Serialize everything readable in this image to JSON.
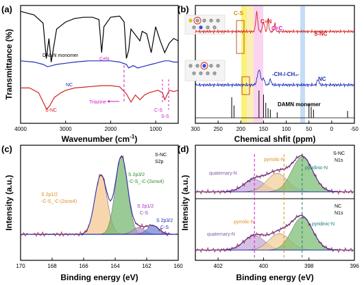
{
  "chart_data": [
    {
      "panel": "(a)",
      "type": "line",
      "xlabel": "Wavenumber (cm⁻¹)",
      "ylabel": "Transmittance (%)",
      "xlim": [
        4000,
        500
      ],
      "x_ticks": [
        "4000",
        "3000",
        "2000",
        "1000"
      ],
      "x_tick_values": [
        4000,
        3000,
        2000,
        1000
      ],
      "series": [
        {
          "name": "DAMN monomer",
          "color": "#000000",
          "x": [
            4000,
            3700,
            3500,
            3430,
            3370,
            3320,
            3200,
            3000,
            2800,
            2600,
            2400,
            2260,
            2200,
            2150,
            2000,
            1800,
            1700,
            1650,
            1600,
            1550,
            1450,
            1350,
            1300,
            1200,
            1100,
            1000,
            900,
            800,
            700,
            600,
            500
          ],
          "y": [
            95,
            92,
            85,
            55,
            72,
            52,
            80,
            86,
            89,
            90,
            90,
            88,
            60,
            82,
            90,
            91,
            86,
            55,
            62,
            80,
            75,
            70,
            78,
            76,
            60,
            82,
            70,
            60,
            68,
            72,
            70
          ]
        },
        {
          "name": "NC",
          "color": "#1f2fb5",
          "x": [
            4000,
            3700,
            3500,
            3400,
            3300,
            3200,
            3000,
            2800,
            2500,
            2200,
            2000,
            1800,
            1650,
            1600,
            1500,
            1400,
            1300,
            1200,
            1100,
            1000,
            900,
            800,
            700,
            600,
            500
          ],
          "y": [
            53,
            52,
            50,
            48,
            49,
            50,
            51,
            52,
            53,
            53,
            53,
            52,
            50,
            47,
            49,
            47,
            48,
            49,
            50,
            51,
            52,
            53,
            53,
            52,
            52
          ]
        },
        {
          "name": "S-NC",
          "color": "#d62020",
          "x": [
            4000,
            3800,
            3600,
            3500,
            3420,
            3350,
            3250,
            3100,
            3000,
            2800,
            2500,
            2200,
            2000,
            1800,
            1650,
            1550,
            1450,
            1350,
            1250,
            1150,
            1050,
            950,
            850,
            800,
            700,
            600,
            500
          ],
          "y": [
            30,
            30,
            26,
            18,
            12,
            15,
            22,
            26,
            28,
            30,
            31,
            32,
            32,
            31,
            25,
            18,
            24,
            20,
            24,
            26,
            27,
            28,
            26,
            20,
            28,
            27,
            28
          ]
        }
      ],
      "annotations": [
        "DAMN monomer",
        "C≡N",
        "NC",
        "Triazine",
        "S-NC",
        "C-S",
        "S-S"
      ]
    },
    {
      "panel": "(b)",
      "type": "line",
      "xlabel": "Chemical shfit (ppm)",
      "xlim": [
        300,
        -50
      ],
      "x_ticks": [
        "300",
        "250",
        "200",
        "150",
        "100",
        "50",
        "0",
        "-50"
      ],
      "x_tick_values": [
        300,
        250,
        200,
        150,
        100,
        50,
        0,
        -50
      ],
      "series": [
        {
          "name": "S-NC",
          "color": "#d62020"
        },
        {
          "name": "NC",
          "color": "#1f2fb5"
        },
        {
          "name": "DAMN monomer",
          "color": "#000000"
        }
      ],
      "annotations": [
        "C-S",
        "C≡N",
        "C=C",
        "S-NC",
        "-CH-/-CH₂-",
        "NC",
        "DAMN monomer"
      ]
    },
    {
      "panel": "(c)",
      "type": "line",
      "xlabel": "Binding energy (eV)",
      "ylabel": "Intensity (a.u.)",
      "xlim": [
        170,
        160
      ],
      "x_ticks": [
        "170",
        "168",
        "166",
        "164",
        "162",
        "160"
      ],
      "x_tick_values": [
        170,
        168,
        166,
        164,
        162,
        160
      ],
      "corner_label": [
        "S-NC",
        "S2p"
      ],
      "peaks": [
        {
          "label": "S 2p1/2 -C-S_-C-(2≤n≤4)",
          "center": 164.9,
          "height": 0.7,
          "color": "#f5c58a"
        },
        {
          "label": "S 2p3/2 -C-S_-C-(2≤n≤4)",
          "center": 163.6,
          "height": 0.92,
          "color": "#6fb36a"
        },
        {
          "label": "S 2p1/2 C-S",
          "center": 162.5,
          "height": 0.08,
          "color": "#b78fd1"
        },
        {
          "label": "S 2p3/2 C-S",
          "center": 161.6,
          "height": 0.1,
          "color": "#6a7fd6"
        }
      ]
    },
    {
      "panel": "(d)",
      "type": "line",
      "xlabel": "Binding energy (eV)",
      "ylabel": "Intensity (a.u.)",
      "xlim": [
        403,
        396
      ],
      "x_ticks": [
        "402",
        "400",
        "398",
        "396"
      ],
      "x_tick_values": [
        402,
        400,
        398,
        396
      ],
      "subpanels": [
        {
          "corner_label": [
            "S-NC",
            "N1s"
          ],
          "peaks": [
            {
              "label": "quaternary-N",
              "center": 400.4,
              "height": 0.3,
              "color": "#c9a9d9"
            },
            {
              "label": "pyrrolic-N",
              "center": 399.4,
              "height": 0.45,
              "color": "#f2d09a"
            },
            {
              "label": "pyridinic-N",
              "center": 398.3,
              "height": 0.85,
              "color": "#7fbf76"
            }
          ]
        },
        {
          "corner_label": [
            "NC",
            "N1s"
          ],
          "peaks": [
            {
              "label": "quaternary-N",
              "center": 400.4,
              "height": 0.35,
              "color": "#c9a9d9"
            },
            {
              "label": "pyrrolic-N",
              "center": 399.3,
              "height": 0.4,
              "color": "#f2d09a"
            },
            {
              "label": "pyridinic-N",
              "center": 398.3,
              "height": 0.8,
              "color": "#7fbf76"
            }
          ]
        }
      ]
    }
  ],
  "panels": {
    "a": {
      "letter": "(a)",
      "y_label": "Transmittance (%)",
      "x_label": "Wavenumber (cm",
      "x_unit_sup": "-1",
      "x_label_end": ")",
      "damn": "DAMN monomer",
      "cn": "C≡N",
      "nc": "NC",
      "triazine": "Triazine",
      "snc": "S-NC",
      "cs": "C-S",
      "ss": "S-S"
    },
    "b": {
      "letter": "(b)",
      "x_label": "Chemical shfit (ppm)",
      "cs": "C-S",
      "cn": "C≡N",
      "cc": "C=C",
      "snc": "S-NC",
      "ch": "-CH-/-CH₂-",
      "nc": "NC",
      "damn": "DAMN monomer"
    },
    "c": {
      "letter": "(c)",
      "y_label": "Intensity (a.u.)",
      "x_label": "Binding energy (eV)",
      "corner1": "S-NC",
      "corner2": "S2p",
      "p1a": "S 2p1/2",
      "p1b": "-C-S_-C-(2≤n≤4)",
      "p2a": "S 2p3/2",
      "p2b": "-C-S_-C-(2≤n≤4)",
      "p3a": "S 2p1/2",
      "p3b": "C-S",
      "p4a": "S 2p3/2",
      "p4b": "C-S"
    },
    "d": {
      "letter": "(d)",
      "y_label": "Intensity (a.u.)",
      "x_label": "Binding energy (eV)",
      "top1": "S-NC",
      "top2": "N1s",
      "bot1": "NC",
      "bot2": "N1s",
      "quat": "quaternary-N",
      "pyrrolic": "pyrrolic-N",
      "pyridinic": "pyridinic-N"
    }
  },
  "colors": {
    "black": "#000000",
    "blue": "#1f2fb5",
    "red": "#d62020",
    "magenta": "#d21ac9"
  }
}
